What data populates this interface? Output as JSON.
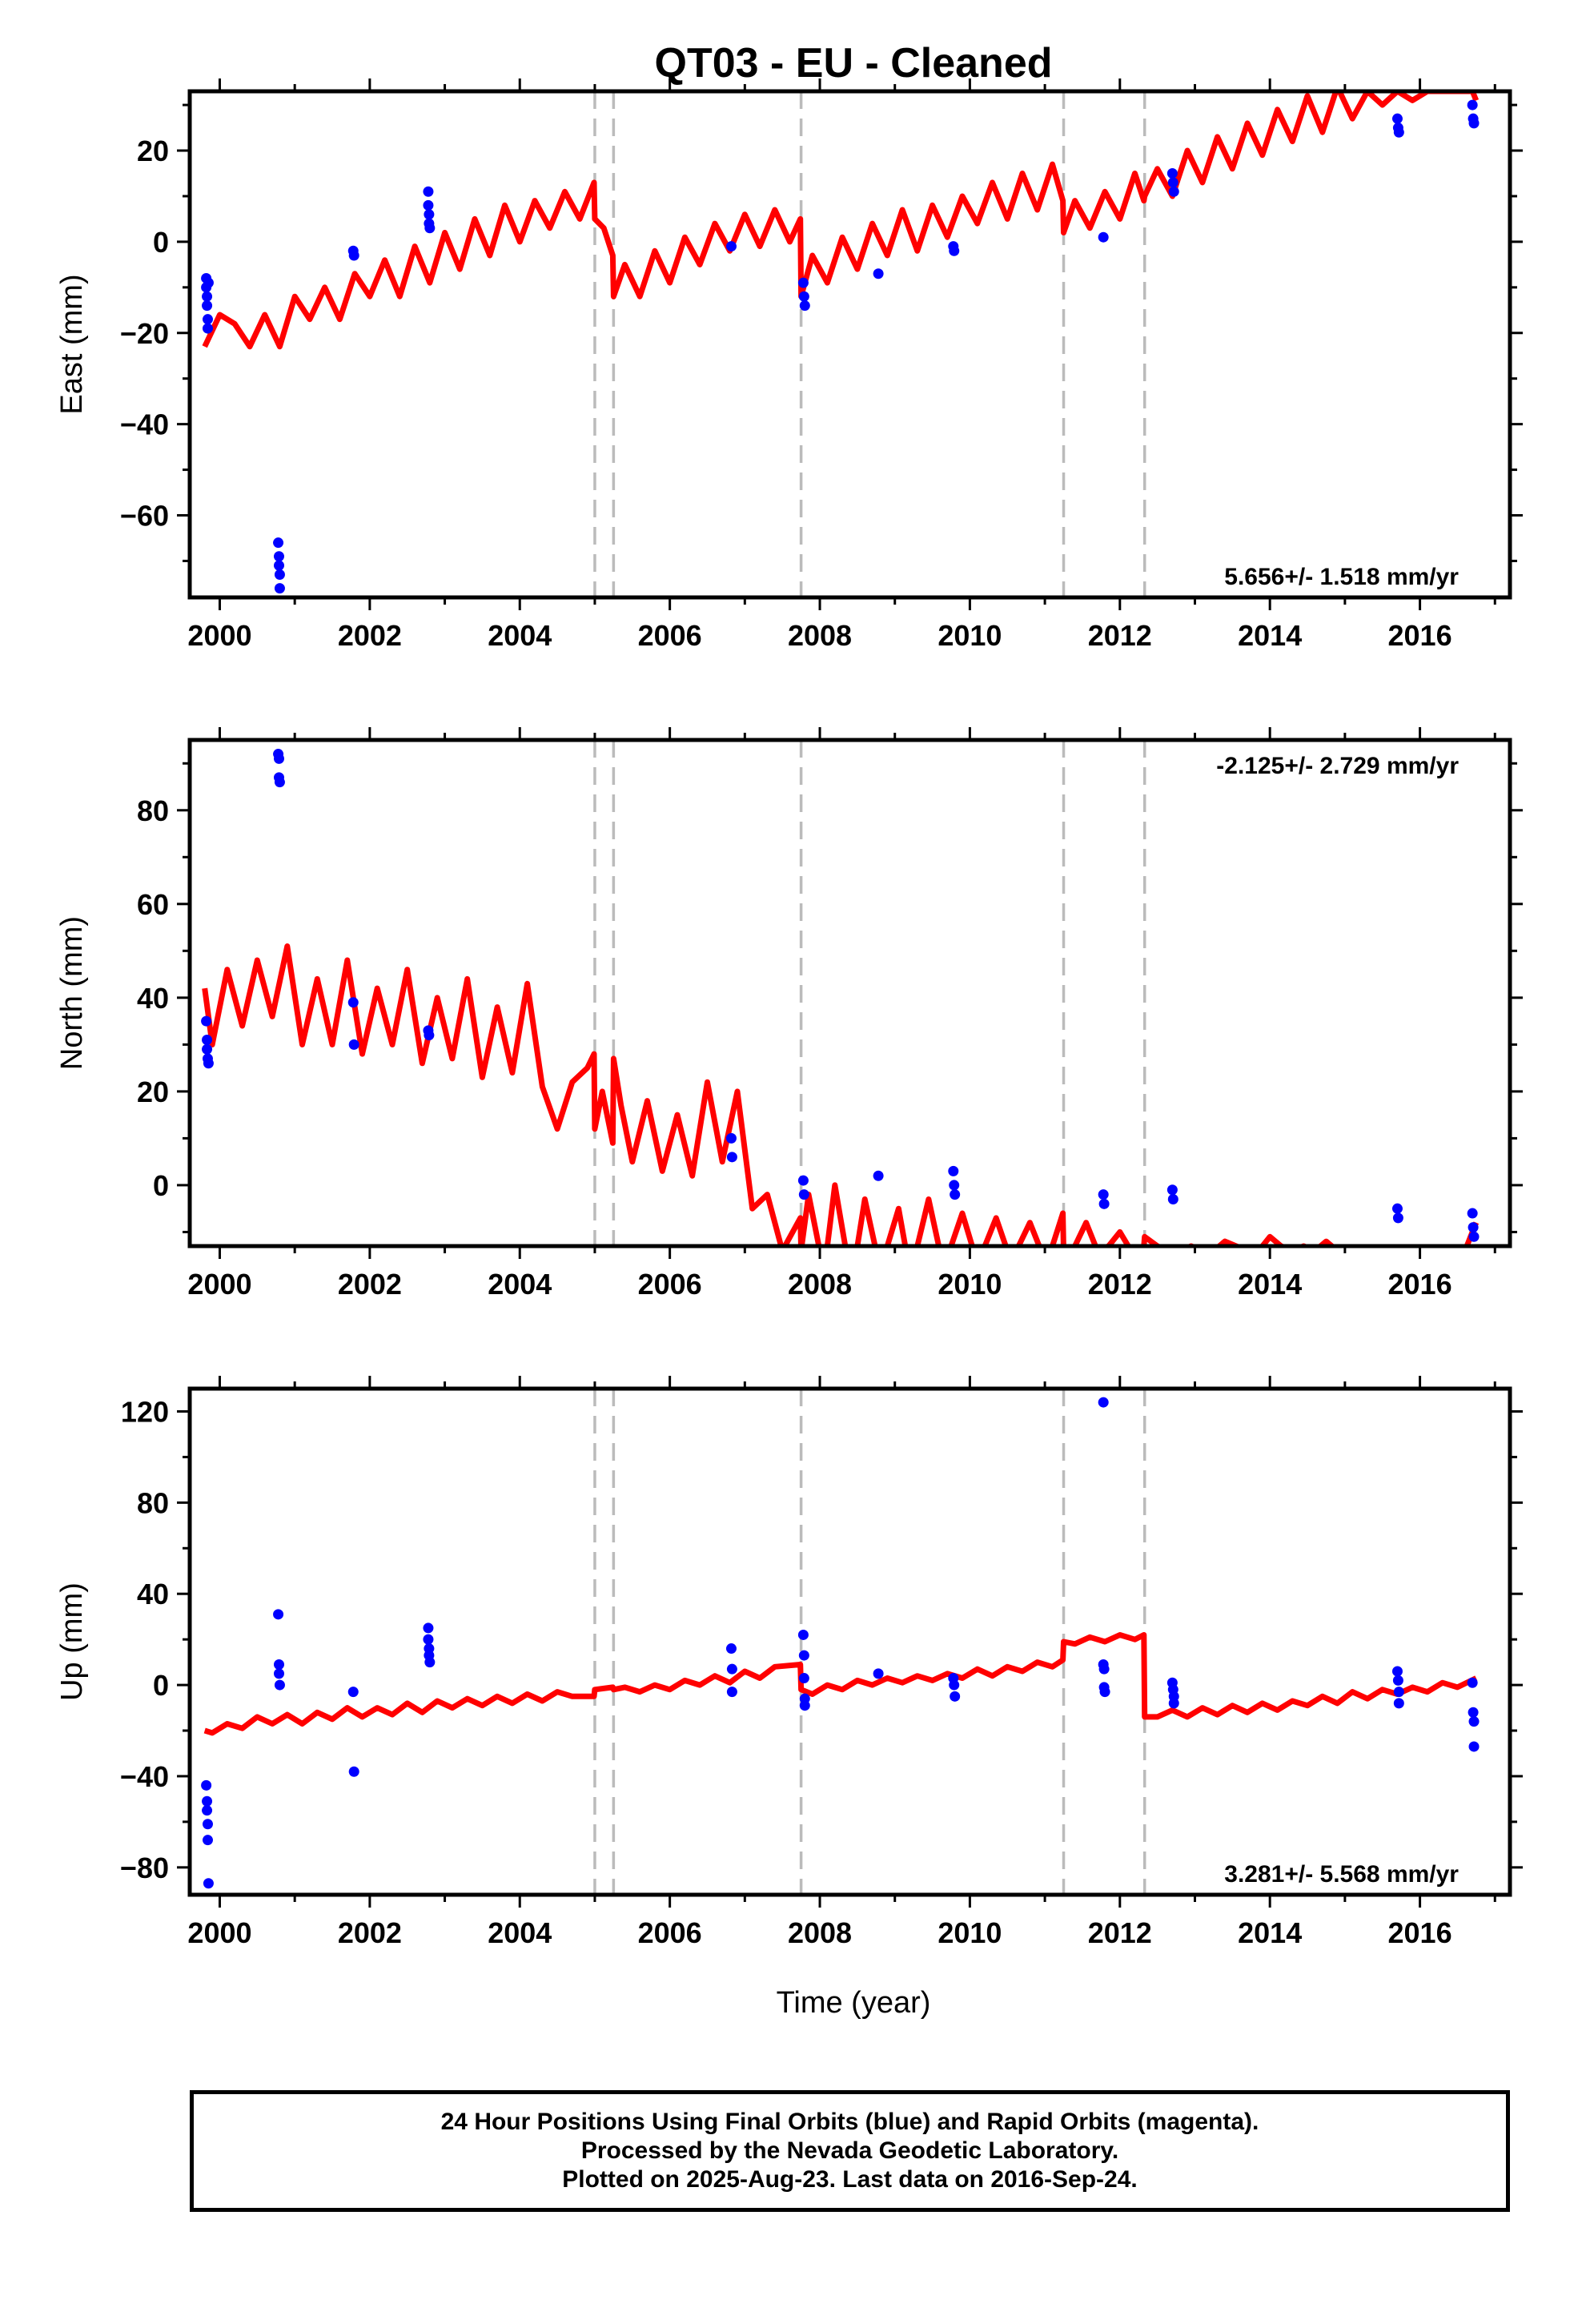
{
  "title": "QT03  - EU - Cleaned",
  "xlabel": "Time (year)",
  "footer": {
    "line1": "24 Hour Positions Using Final Orbits (blue) and Rapid Orbits (magenta).",
    "line2": "Processed by the Nevada Geodetic Laboratory.",
    "line3": "Plotted on 2025-Aug-23. Last data on 2016-Sep-24."
  },
  "colors": {
    "data": "#0000ff",
    "model": "#ff0000",
    "steps": "#bbbbbb",
    "frame": "#000000"
  },
  "chart_data": [
    {
      "type": "scatter",
      "panel": "east",
      "ylabel": "East (mm)",
      "xlim": [
        1999.6,
        2017.2
      ],
      "ylim": [
        -78,
        33
      ],
      "yticks": [
        20,
        0,
        -20,
        -40,
        -60
      ],
      "xticks": [
        2000,
        2002,
        2004,
        2006,
        2008,
        2010,
        2012,
        2014,
        2016
      ],
      "grid": false,
      "step_lines": [
        2005.0,
        2005.25,
        2007.75,
        2011.25,
        2012.33
      ],
      "rate_label": "5.656+/- 1.518 mm/yr",
      "rate_label_position": "bottom-right",
      "series": [
        {
          "kind": "points",
          "x": [
            1999.82,
            1999.82,
            1999.83,
            1999.83,
            1999.84,
            1999.84,
            1999.85,
            2000.78,
            2000.79,
            2000.79,
            2000.8,
            2000.8,
            2001.78,
            2001.79,
            2002.78,
            2002.78,
            2002.79,
            2002.79,
            2002.8,
            2006.82,
            2007.78,
            2007.79,
            2007.8,
            2008.78,
            2009.78,
            2009.79,
            2011.78,
            2012.7,
            2012.71,
            2012.72,
            2015.7,
            2015.71,
            2015.72,
            2016.7,
            2016.71,
            2016.72
          ],
          "y": [
            -8,
            -10,
            -12,
            -14,
            -17,
            -19,
            -9,
            -66,
            -69,
            -71,
            -73,
            -76,
            -2,
            -3,
            11,
            8,
            6,
            4,
            3,
            -1,
            -9,
            -12,
            -14,
            -7,
            -1,
            -2,
            1,
            15,
            13,
            11,
            27,
            25,
            24,
            30,
            27,
            26
          ]
        },
        {
          "kind": "model",
          "x": [
            1999.8,
            2000.0,
            2000.2,
            2000.4,
            2000.6,
            2000.8,
            2001.0,
            2001.2,
            2001.4,
            2001.6,
            2001.8,
            2002.0,
            2002.2,
            2002.4,
            2002.6,
            2002.8,
            2003.0,
            2003.2,
            2003.4,
            2003.6,
            2003.8,
            2004.0,
            2004.2,
            2004.4,
            2004.6,
            2004.8,
            2004.99,
            2005.0,
            2005.12,
            2005.24,
            2005.25,
            2005.4,
            2005.6,
            2005.8,
            2006.0,
            2006.2,
            2006.4,
            2006.6,
            2006.8,
            2007.0,
            2007.2,
            2007.4,
            2007.6,
            2007.74,
            2007.75,
            2007.9,
            2008.1,
            2008.3,
            2008.5,
            2008.7,
            2008.9,
            2009.1,
            2009.3,
            2009.5,
            2009.7,
            2009.9,
            2010.1,
            2010.3,
            2010.5,
            2010.7,
            2010.9,
            2011.1,
            2011.24,
            2011.25,
            2011.4,
            2011.6,
            2011.8,
            2012.0,
            2012.2,
            2012.32,
            2012.33,
            2012.5,
            2012.7,
            2012.9,
            2013.1,
            2013.3,
            2013.5,
            2013.7,
            2013.9,
            2014.1,
            2014.3,
            2014.5,
            2014.7,
            2014.9,
            2015.1,
            2015.3,
            2015.5,
            2015.7,
            2015.9,
            2016.1,
            2016.3,
            2016.5,
            2016.7,
            2016.75
          ],
          "y": [
            -23,
            -16,
            -18,
            -23,
            -16,
            -23,
            -12,
            -17,
            -10,
            -17,
            -7,
            -12,
            -4,
            -12,
            -1,
            -9,
            2,
            -6,
            5,
            -3,
            8,
            0,
            9,
            3,
            11,
            5,
            13,
            5,
            3,
            -3,
            -12,
            -5,
            -12,
            -2,
            -9,
            1,
            -5,
            4,
            -2,
            6,
            -1,
            7,
            0,
            5,
            -12,
            -3,
            -9,
            1,
            -6,
            4,
            -3,
            7,
            -2,
            8,
            1,
            10,
            4,
            13,
            5,
            15,
            7,
            17,
            9,
            2,
            9,
            3,
            11,
            5,
            15,
            9,
            10,
            16,
            10,
            20,
            13,
            23,
            16,
            26,
            19,
            29,
            22,
            32,
            24,
            34,
            27,
            33,
            30,
            33,
            31,
            33,
            33,
            33,
            33,
            31
          ]
        }
      ]
    },
    {
      "type": "scatter",
      "panel": "north",
      "ylabel": "North (mm)",
      "xlim": [
        1999.6,
        2017.2
      ],
      "ylim": [
        -13,
        95
      ],
      "yticks": [
        80,
        60,
        40,
        20,
        0
      ],
      "xticks": [
        2000,
        2002,
        2004,
        2006,
        2008,
        2010,
        2012,
        2014,
        2016
      ],
      "grid": false,
      "step_lines": [
        2005.0,
        2005.25,
        2007.75,
        2011.25,
        2012.33
      ],
      "rate_label": "-2.125+/- 2.729 mm/yr",
      "rate_label_position": "top-right",
      "series": [
        {
          "kind": "points",
          "x": [
            1999.82,
            1999.83,
            1999.83,
            1999.84,
            1999.85,
            2000.78,
            2000.79,
            2000.79,
            2000.8,
            2001.78,
            2001.79,
            2002.78,
            2002.79,
            2006.82,
            2006.83,
            2007.78,
            2007.79,
            2008.78,
            2009.78,
            2009.79,
            2009.8,
            2011.78,
            2011.79,
            2012.7,
            2012.71,
            2015.7,
            2015.71,
            2016.7,
            2016.71,
            2016.72
          ],
          "y": [
            35,
            31,
            29,
            27,
            26,
            92,
            91,
            87,
            86,
            39,
            30,
            33,
            32,
            10,
            6,
            1,
            -2,
            2,
            3,
            0,
            -2,
            -2,
            -4,
            -1,
            -3,
            -5,
            -7,
            -6,
            -9,
            -11
          ]
        },
        {
          "kind": "model",
          "x": [
            1999.8,
            1999.9,
            2000.1,
            2000.3,
            2000.5,
            2000.7,
            2000.9,
            2001.1,
            2001.3,
            2001.5,
            2001.7,
            2001.9,
            2002.1,
            2002.3,
            2002.5,
            2002.7,
            2002.9,
            2003.1,
            2003.3,
            2003.5,
            2003.7,
            2003.9,
            2004.1,
            2004.3,
            2004.5,
            2004.7,
            2004.9,
            2004.99,
            2005.0,
            2005.1,
            2005.24,
            2005.25,
            2005.35,
            2005.5,
            2005.7,
            2005.9,
            2006.1,
            2006.3,
            2006.5,
            2006.7,
            2006.9,
            2007.1,
            2007.3,
            2007.5,
            2007.74,
            2007.75,
            2007.85,
            2008.0,
            2008.1,
            2008.2,
            2008.35,
            2008.5,
            2008.6,
            2008.75,
            2008.9,
            2009.05,
            2009.15,
            2009.3,
            2009.45,
            2009.6,
            2009.75,
            2009.9,
            2010.05,
            2010.2,
            2010.35,
            2010.5,
            2010.65,
            2010.8,
            2010.95,
            2011.1,
            2011.24,
            2011.25,
            2011.4,
            2011.55,
            2011.7,
            2011.85,
            2012.0,
            2012.15,
            2012.32,
            2012.33,
            2012.5,
            2012.65,
            2012.8,
            2012.95,
            2013.1,
            2013.25,
            2013.4,
            2013.55,
            2013.7,
            2013.85,
            2014.0,
            2014.15,
            2014.3,
            2014.45,
            2014.6,
            2014.75,
            2014.9,
            2015.1,
            2015.3,
            2015.5,
            2015.7,
            2015.85,
            2016.0,
            2016.2,
            2016.4,
            2016.6,
            2016.75
          ],
          "y": [
            42,
            30,
            46,
            34,
            48,
            36,
            51,
            30,
            44,
            30,
            48,
            28,
            42,
            30,
            46,
            26,
            40,
            27,
            44,
            23,
            38,
            24,
            43,
            21,
            12,
            22,
            25,
            28,
            12,
            20,
            9,
            27,
            17,
            5,
            18,
            3,
            15,
            2,
            22,
            5,
            20,
            -5,
            -2,
            -14,
            -7,
            -14,
            -2,
            -14,
            -13,
            0,
            -14,
            -13,
            -3,
            -14,
            -13,
            -5,
            -14,
            -13,
            -3,
            -14,
            -13,
            -6,
            -14,
            -13,
            -7,
            -14,
            -13,
            -8,
            -14,
            -13,
            -6,
            -14,
            -13,
            -8,
            -14,
            -13,
            -10,
            -14,
            -13,
            -11,
            -13,
            -14,
            -14,
            -13,
            -14,
            -14,
            -12,
            -13,
            -14,
            -14,
            -11,
            -13,
            -14,
            -13,
            -14,
            -12,
            -14,
            -14,
            -14,
            -14,
            -14,
            -14,
            -14,
            -14,
            -14,
            -14,
            -8
          ]
        }
      ]
    },
    {
      "type": "scatter",
      "panel": "up",
      "ylabel": "Up (mm)",
      "xlim": [
        1999.6,
        2017.2
      ],
      "ylim": [
        -92,
        130
      ],
      "yticks": [
        120,
        80,
        40,
        0,
        -40,
        -80
      ],
      "xticks": [
        2000,
        2002,
        2004,
        2006,
        2008,
        2010,
        2012,
        2014,
        2016
      ],
      "grid": false,
      "step_lines": [
        2005.0,
        2005.25,
        2007.75,
        2011.25,
        2012.33
      ],
      "rate_label": "3.281+/- 5.568 mm/yr",
      "rate_label_position": "bottom-right",
      "series": [
        {
          "kind": "points",
          "x": [
            1999.82,
            1999.83,
            1999.83,
            1999.84,
            1999.84,
            1999.85,
            2000.78,
            2000.79,
            2000.79,
            2000.8,
            2001.78,
            2001.79,
            2002.78,
            2002.78,
            2002.79,
            2002.79,
            2002.8,
            2006.82,
            2006.83,
            2006.83,
            2007.78,
            2007.79,
            2007.79,
            2007.8,
            2007.8,
            2008.78,
            2009.78,
            2009.79,
            2009.8,
            2011.78,
            2011.78,
            2011.79,
            2011.79,
            2011.8,
            2012.7,
            2012.71,
            2012.72,
            2012.72,
            2015.7,
            2015.71,
            2015.72,
            2015.72,
            2016.7,
            2016.71,
            2016.72,
            2016.72
          ],
          "y": [
            -44,
            -51,
            -55,
            -61,
            -68,
            -87,
            31,
            9,
            5,
            0,
            -3,
            -38,
            25,
            20,
            16,
            13,
            10,
            16,
            7,
            -3,
            22,
            13,
            3,
            -6,
            -9,
            5,
            3,
            0,
            -5,
            124,
            9,
            7,
            -1,
            -3,
            1,
            -2,
            -5,
            -8,
            6,
            2,
            -3,
            -8,
            1,
            -12,
            -16,
            -27
          ]
        },
        {
          "kind": "model",
          "x": [
            1999.8,
            1999.9,
            2000.1,
            2000.3,
            2000.5,
            2000.7,
            2000.9,
            2001.1,
            2001.3,
            2001.5,
            2001.7,
            2001.9,
            2002.1,
            2002.3,
            2002.5,
            2002.7,
            2002.9,
            2003.1,
            2003.3,
            2003.5,
            2003.7,
            2003.9,
            2004.1,
            2004.3,
            2004.5,
            2004.7,
            2004.99,
            2005.0,
            2005.24,
            2005.25,
            2005.4,
            2005.6,
            2005.8,
            2006.0,
            2006.2,
            2006.4,
            2006.6,
            2006.8,
            2007.0,
            2007.2,
            2007.4,
            2007.74,
            2007.75,
            2007.9,
            2008.1,
            2008.3,
            2008.5,
            2008.7,
            2008.9,
            2009.1,
            2009.3,
            2009.5,
            2009.7,
            2009.9,
            2010.1,
            2010.3,
            2010.5,
            2010.7,
            2010.9,
            2011.1,
            2011.24,
            2011.25,
            2011.4,
            2011.6,
            2011.8,
            2012.0,
            2012.2,
            2012.32,
            2012.33,
            2012.5,
            2012.7,
            2012.9,
            2013.1,
            2013.3,
            2013.5,
            2013.7,
            2013.9,
            2014.1,
            2014.3,
            2014.5,
            2014.7,
            2014.9,
            2015.1,
            2015.3,
            2015.5,
            2015.7,
            2015.9,
            2016.1,
            2016.3,
            2016.5,
            2016.75
          ],
          "y": [
            -20,
            -21,
            -17,
            -19,
            -14,
            -17,
            -13,
            -17,
            -12,
            -15,
            -10,
            -14,
            -10,
            -13,
            -8,
            -12,
            -7,
            -10,
            -6,
            -9,
            -5,
            -8,
            -4,
            -7,
            -3,
            -5,
            -5,
            -2,
            -1,
            -2,
            -1,
            -3,
            0,
            -2,
            2,
            0,
            4,
            1,
            6,
            3,
            8,
            9,
            -2,
            -4,
            0,
            -2,
            2,
            0,
            3,
            1,
            4,
            2,
            5,
            3,
            7,
            4,
            8,
            6,
            10,
            8,
            11,
            19,
            18,
            21,
            19,
            22,
            20,
            22,
            -14,
            -14,
            -11,
            -14,
            -10,
            -13,
            -9,
            -12,
            -8,
            -11,
            -7,
            -9,
            -5,
            -8,
            -3,
            -6,
            -2,
            -4,
            -1,
            -3,
            1,
            -1,
            3
          ]
        }
      ]
    }
  ]
}
